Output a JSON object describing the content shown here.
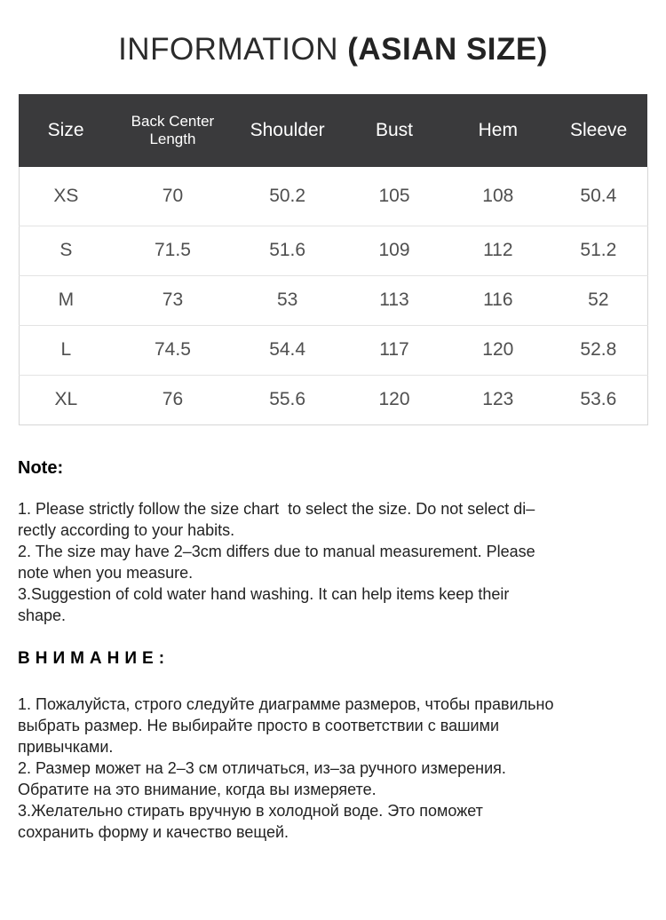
{
  "page": {
    "title": {
      "regular": "INFORMATION ",
      "bold": "(ASIAN SIZE)"
    }
  },
  "size_table": {
    "columns": [
      "Size",
      "Back Center\nLength",
      "Shoulder",
      "Bust",
      "Hem",
      "Sleeve"
    ],
    "rows": [
      [
        "XS",
        "70",
        "50.2",
        "105",
        "108",
        "50.4"
      ],
      [
        "S",
        "71.5",
        "51.6",
        "109",
        "112",
        "51.2"
      ],
      [
        "M",
        "73",
        "53",
        "113",
        "116",
        "52"
      ],
      [
        "L",
        "74.5",
        "54.4",
        "117",
        "120",
        "52.8"
      ],
      [
        "XL",
        "76",
        "55.6",
        "120",
        "123",
        "53.6"
      ]
    ]
  },
  "note": {
    "heading": "Note:",
    "items": [
      "1. Please strictly follow the size chart  to select the size. Do not select di–\nrectly according to your habits.",
      "2. The size may have 2–3cm differs due to manual measurement. Please\nnote when you measure.",
      "3.Suggestion of cold water hand washing. It can help items keep their\nshape."
    ]
  },
  "attention": {
    "heading": "ВНИМАНИЕ:",
    "items": [
      "1. Пожалуйста, строго следуйте диаграмме размеров, чтобы правильно\nвыбрать размер. Не выбирайте просто в соответствии с вашими\nпривычками.",
      "2. Размер может на 2–3 см отличаться, из–за ручного измерения.\nОбратите на это внимание, когда вы измеряете.",
      "3.Желательно стирать вручную в холодной воде. Это поможет\nсохранить форму и качество вещей."
    ]
  },
  "colors": {
    "header_bg": "#3a3a3c",
    "header_text": "#ffffff",
    "table_border": "#d6d6d6",
    "row_divider": "#e3e3e3",
    "body_text": "#1f1f1f",
    "cell_text": "#4f4f4f"
  }
}
